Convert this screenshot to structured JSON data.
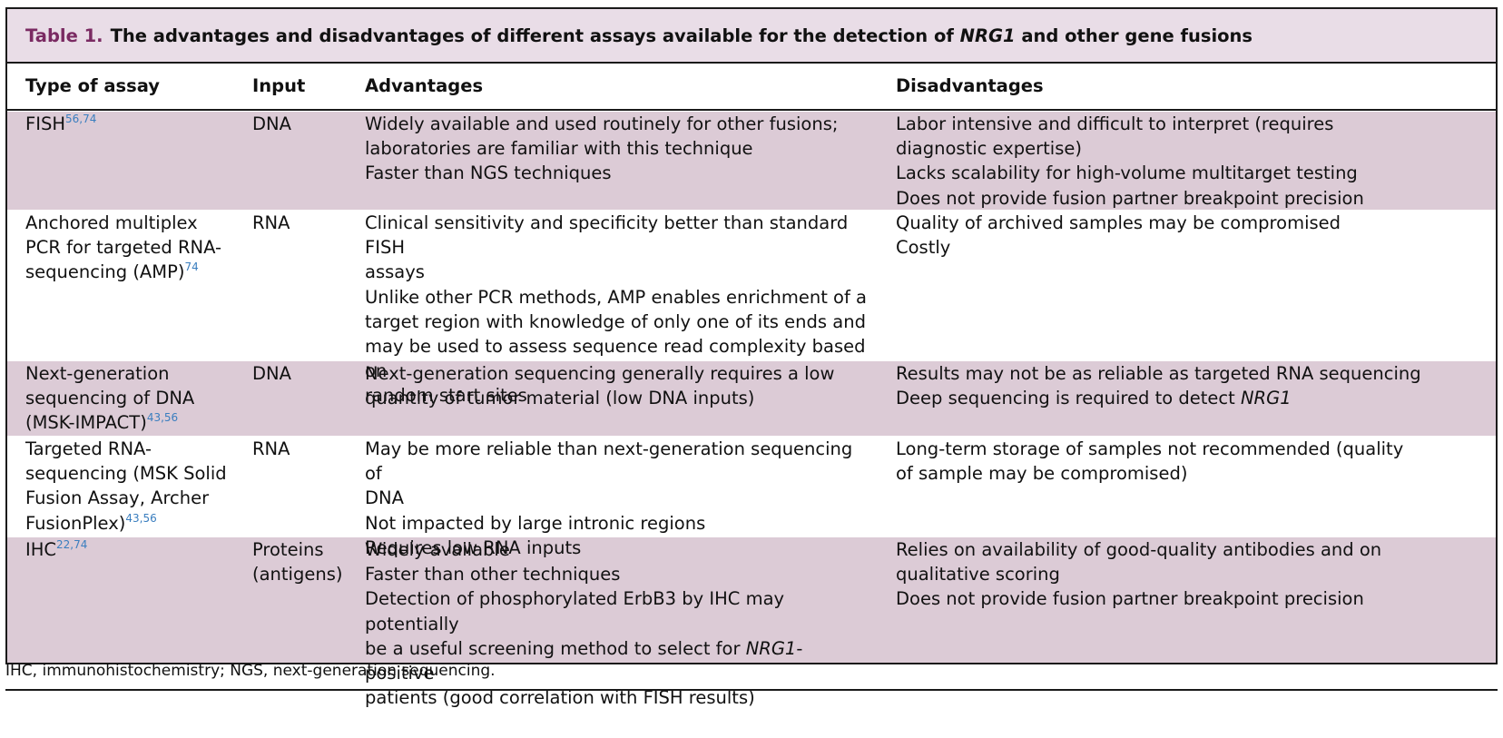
{
  "caption": {
    "label": "Table 1.",
    "text_before": "The advantages and disadvantages of different assays available for the detection of ",
    "gene": "NRG1",
    "text_after": " and other gene fusions"
  },
  "columns": {
    "type": "Type of assay",
    "input": "Input",
    "advantages": "Advantages",
    "disadvantages": "Disadvantages"
  },
  "rows": [
    {
      "type_lines": [
        "FISH"
      ],
      "type_refs": "56,74",
      "input": [
        "DNA"
      ],
      "advantages": [
        "Widely available and used routinely for other fusions;",
        "laboratories are familiar with this technique",
        "Faster than NGS techniques"
      ],
      "disadvantages": [
        "Labor intensive and difficult to interpret (requires",
        "diagnostic expertise)",
        "Lacks scalability for high-volume multitarget testing",
        "Does not provide fusion partner breakpoint precision"
      ]
    },
    {
      "type_lines": [
        "Anchored multiplex",
        "PCR for targeted RNA-",
        "sequencing (AMP)"
      ],
      "type_refs": "74",
      "input": [
        "RNA"
      ],
      "advantages": [
        "Clinical sensitivity and specificity better than standard FISH",
        "assays",
        "Unlike other PCR methods, AMP enables enrichment of a",
        "target region with knowledge of only one of its ends and",
        "may be used to assess sequence read complexity based on",
        "random start sites"
      ],
      "disadvantages": [
        "Quality of archived samples may be compromised",
        "Costly"
      ]
    },
    {
      "type_lines": [
        "Next-generation",
        "sequencing of DNA",
        "(MSK-IMPACT)"
      ],
      "type_refs": "43,56",
      "input": [
        "DNA"
      ],
      "advantages": [
        "Next-generation sequencing generally requires a low",
        "quantity of tumor material (low DNA inputs)"
      ],
      "disadvantages": [
        "Results may not be as reliable as targeted RNA sequencing",
        "Deep sequencing is required to detect "
      ],
      "disadvantages_gene": "NRG1"
    },
    {
      "type_lines": [
        "Targeted RNA-",
        "sequencing (MSK Solid",
        "Fusion Assay, Archer",
        "FusionPlex)"
      ],
      "type_refs": "43,56",
      "input": [
        "RNA"
      ],
      "advantages": [
        "May be more reliable than next-generation sequencing of",
        "DNA",
        "Not impacted by large intronic regions",
        "Requires low RNA inputs"
      ],
      "disadvantages": [
        "Long-term storage of samples not recommended (quality",
        "of sample may be compromised)"
      ]
    },
    {
      "type_lines": [
        "IHC"
      ],
      "type_refs": "22,74",
      "input": [
        "Proteins",
        "(antigens)"
      ],
      "advantages": [
        "Widely available",
        "Faster than other techniques",
        "Detection of phosphorylated ErbB3 by IHC may potentially",
        "be a useful screening method to select for ",
        "patients (good correlation with FISH results)"
      ],
      "advantages_gene": "NRG1",
      "advantages_gene_suffix": "-positive",
      "disadvantages": [
        "Relies on availability of good-quality antibodies and on",
        "qualitative scoring",
        "Does not provide fusion partner breakpoint precision"
      ]
    }
  ],
  "footnote": "IHC, immunohistochemistry; NGS, next-generation sequencing.",
  "colors": {
    "caption_bg": "#e9dde7",
    "caption_label": "#7a2a62",
    "shaded_row": "#dccbd6",
    "ref_link": "#3a7ebf"
  }
}
